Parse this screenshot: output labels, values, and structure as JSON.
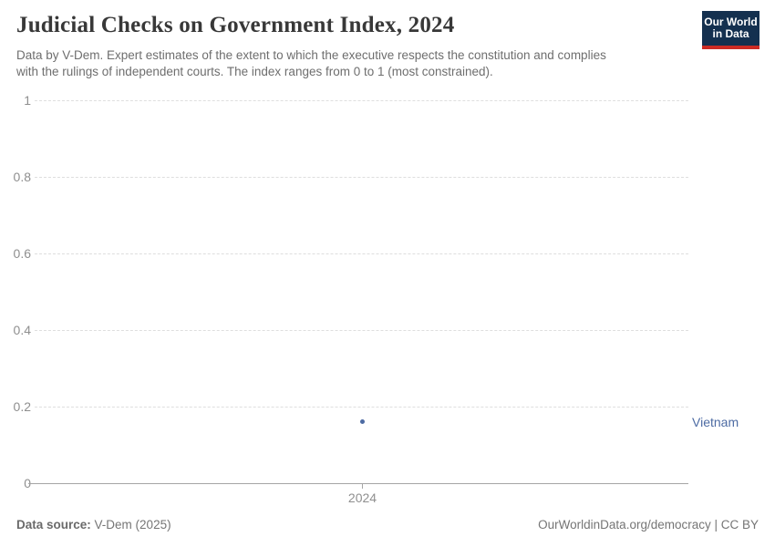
{
  "header": {
    "title": "Judicial Checks on Government Index, 2024",
    "subtitle": "Data by V-Dem. Expert estimates of the extent to which the executive respects the constitution and complies\nwith the rulings of independent courts. The index ranges from 0 to 1 (most constrained).",
    "logo": {
      "line1": "Our World",
      "line2": "in Data"
    }
  },
  "chart_data": {
    "type": "scatter",
    "title": "Judicial Checks on Government Index, 2024",
    "x": [
      2024
    ],
    "series": [
      {
        "name": "Vietnam",
        "values": [
          0.16
        ],
        "color": "#4d6ba3"
      }
    ],
    "xlabel": "",
    "ylabel": "",
    "ylim": [
      0,
      1
    ],
    "yticks": [
      0,
      0.2,
      0.4,
      0.6,
      0.8,
      1
    ],
    "xticks": [
      2024
    ],
    "grid": "horizontal-dashed",
    "legend_position": "entity-label-right-of-plot"
  },
  "axes": {
    "y_tick_labels": [
      "1",
      "0.8",
      "0.6",
      "0.4",
      "0.2",
      "0"
    ],
    "x_tick_label": "2024"
  },
  "footer": {
    "source_label": "Data source:",
    "source_value": "V-Dem (2025)",
    "credit": "OurWorldinData.org/democracy | CC BY"
  },
  "colors": {
    "series_blue": "#4d6ba3",
    "logo_background": "#14304f",
    "logo_bar": "#cc2b24",
    "gridline": "#dedede",
    "axis_line": "#a5a5a5",
    "tick_text": "#8f8f8f",
    "title_text": "#383838",
    "subtitle_text": "#6e6e6e",
    "footer_text": "#757575"
  }
}
